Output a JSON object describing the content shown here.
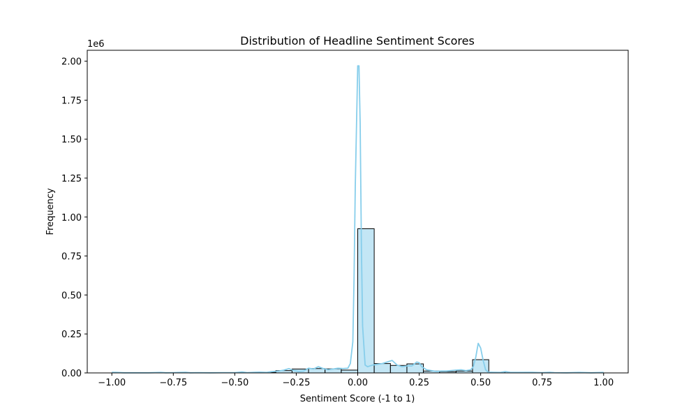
{
  "chart_data": {
    "type": "bar",
    "title": "Distribution of Headline Sentiment Scores",
    "xlabel": "Sentiment Score (-1 to 1)",
    "ylabel": "Frequency",
    "y_offset_label": "1e6",
    "xlim": [
      -1.1,
      1.1
    ],
    "ylim": [
      0,
      2.07
    ],
    "y_unit_scale": 1000000,
    "grid": false,
    "legend": "none",
    "xticks": [
      -1.0,
      -0.75,
      -0.5,
      -0.25,
      0.0,
      0.25,
      0.5,
      0.75,
      1.0
    ],
    "xtick_labels": [
      "−1.00",
      "−0.75",
      "−0.50",
      "−0.25",
      "0.00",
      "0.25",
      "0.50",
      "0.75",
      "1.00"
    ],
    "yticks": [
      0,
      0.25,
      0.5,
      0.75,
      1.0,
      1.25,
      1.5,
      1.75,
      2.0
    ],
    "ytick_labels": [
      "0.00",
      "0.25",
      "0.50",
      "0.75",
      "1.00",
      "1.25",
      "1.50",
      "1.75",
      "2.00"
    ],
    "bins": [
      {
        "x0": -0.4,
        "x1": -0.333,
        "value": 0.004
      },
      {
        "x0": -0.333,
        "x1": -0.267,
        "value": 0.015
      },
      {
        "x0": -0.267,
        "x1": -0.2,
        "value": 0.025
      },
      {
        "x0": -0.2,
        "x1": -0.133,
        "value": 0.028
      },
      {
        "x0": -0.133,
        "x1": -0.067,
        "value": 0.026
      },
      {
        "x0": -0.067,
        "x1": 0.0,
        "value": 0.018
      },
      {
        "x0": 0.0,
        "x1": 0.067,
        "value": 0.925
      },
      {
        "x0": 0.067,
        "x1": 0.133,
        "value": 0.06
      },
      {
        "x0": 0.133,
        "x1": 0.2,
        "value": 0.048
      },
      {
        "x0": 0.2,
        "x1": 0.267,
        "value": 0.058
      },
      {
        "x0": 0.267,
        "x1": 0.333,
        "value": 0.012
      },
      {
        "x0": 0.333,
        "x1": 0.4,
        "value": 0.008
      },
      {
        "x0": 0.4,
        "x1": 0.467,
        "value": 0.012
      },
      {
        "x0": 0.467,
        "x1": 0.533,
        "value": 0.085
      },
      {
        "x0": 0.533,
        "x1": 0.6,
        "value": 0.004
      }
    ],
    "kde": {
      "x": [
        -1.0,
        -0.98,
        -0.95,
        -0.9,
        -0.85,
        -0.8,
        -0.78,
        -0.75,
        -0.7,
        -0.68,
        -0.65,
        -0.6,
        -0.55,
        -0.5,
        -0.47,
        -0.45,
        -0.42,
        -0.4,
        -0.37,
        -0.35,
        -0.32,
        -0.3,
        -0.28,
        -0.26,
        -0.24,
        -0.22,
        -0.2,
        -0.18,
        -0.16,
        -0.14,
        -0.12,
        -0.1,
        -0.08,
        -0.06,
        -0.04,
        -0.03,
        -0.02,
        -0.015,
        -0.01,
        0.0,
        0.005,
        0.01,
        0.015,
        0.02,
        0.03,
        0.04,
        0.06,
        0.08,
        0.1,
        0.12,
        0.14,
        0.16,
        0.18,
        0.2,
        0.22,
        0.24,
        0.25,
        0.26,
        0.28,
        0.3,
        0.32,
        0.34,
        0.36,
        0.38,
        0.4,
        0.42,
        0.44,
        0.46,
        0.47,
        0.48,
        0.49,
        0.5,
        0.51,
        0.52,
        0.53,
        0.55,
        0.58,
        0.6,
        0.62,
        0.65,
        0.7,
        0.75,
        0.78,
        0.8,
        0.85,
        0.9,
        0.95,
        1.0
      ],
      "y": [
        0.004,
        0.003,
        0.001,
        0.001,
        0.001,
        0.003,
        0.001,
        0.002,
        0.004,
        0.001,
        0.002,
        0.001,
        0.002,
        0.002,
        0.006,
        0.002,
        0.004,
        0.005,
        0.003,
        0.008,
        0.012,
        0.018,
        0.028,
        0.015,
        0.01,
        0.012,
        0.03,
        0.025,
        0.04,
        0.028,
        0.02,
        0.025,
        0.03,
        0.028,
        0.03,
        0.06,
        0.2,
        0.6,
        1.2,
        1.97,
        1.97,
        1.6,
        0.8,
        0.3,
        0.05,
        0.04,
        0.05,
        0.055,
        0.06,
        0.07,
        0.08,
        0.05,
        0.04,
        0.045,
        0.045,
        0.07,
        0.065,
        0.04,
        0.02,
        0.015,
        0.01,
        0.012,
        0.012,
        0.015,
        0.018,
        0.02,
        0.015,
        0.02,
        0.04,
        0.1,
        0.19,
        0.16,
        0.08,
        0.02,
        0.005,
        0.004,
        0.003,
        0.008,
        0.004,
        0.003,
        0.004,
        0.002,
        0.004,
        0.002,
        0.001,
        0.003,
        0.001,
        0.003
      ]
    },
    "colors": {
      "bar_fill": "#87CEEB",
      "bar_fill_opacity": 0.5,
      "bar_edge": "#000000",
      "kde_line": "#87CEEB"
    }
  }
}
